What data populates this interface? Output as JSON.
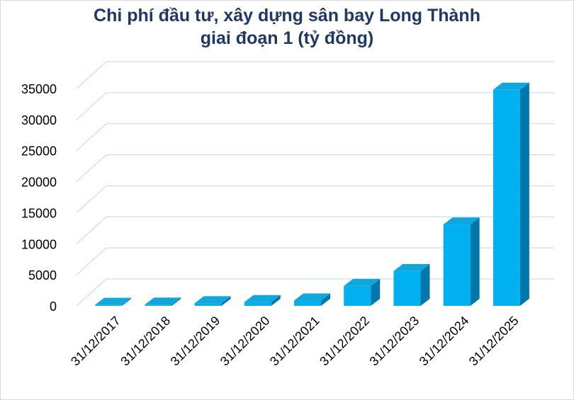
{
  "chart_data": {
    "type": "bar",
    "title_line1": "Chi phí đầu tư, xây dựng sân bay Long Thành",
    "title_line2": "giai đoạn 1 (tỷ đồng)",
    "categories": [
      "31/12/2017",
      "31/12/2018",
      "31/12/2019",
      "31/12/2020",
      "31/12/2021",
      "31/12/2022",
      "31/12/2023",
      "31/12/2024",
      "31/12/2025"
    ],
    "values": [
      150,
      180,
      420,
      600,
      850,
      3200,
      5600,
      13100,
      34800
    ],
    "ylim": [
      0,
      35000
    ],
    "yticks": [
      0,
      5000,
      10000,
      15000,
      20000,
      25000,
      30000,
      35000
    ],
    "grid": true,
    "legend": "none",
    "colors": {
      "bar_front": "#00b0f0",
      "bar_top": "#0fa7dc",
      "bar_side": "#0077aa",
      "grid": "#bdd7ee",
      "title": "#1f3864"
    }
  }
}
